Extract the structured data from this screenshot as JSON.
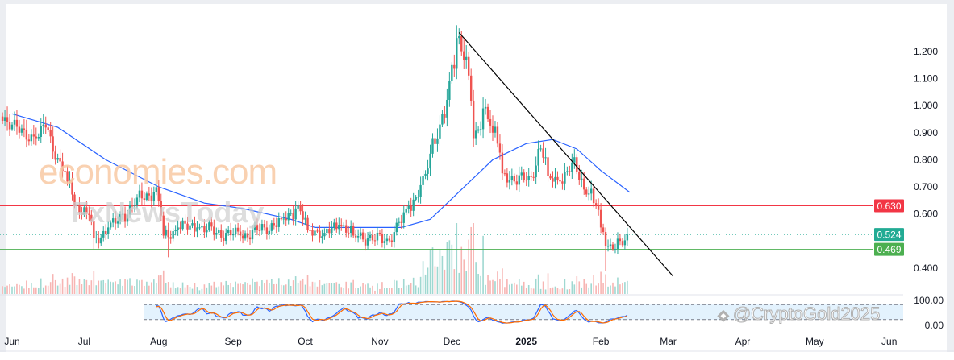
{
  "chart_data": {
    "type": "candlestick",
    "symbol_watermarks": [
      "economies.com",
      "FxNewsToday",
      "@CryptoGold2025"
    ],
    "price_axis": {
      "ticks": [
        "1.200",
        "1.100",
        "1.000",
        "0.900",
        "0.800",
        "0.700",
        "0.600",
        "0.400"
      ],
      "ylim": [
        0.37,
        1.3
      ]
    },
    "time_axis": {
      "ticks": [
        {
          "label": "Jun",
          "date": "2024-06-01"
        },
        {
          "label": "Jul",
          "date": "2024-07-01"
        },
        {
          "label": "Aug",
          "date": "2024-08-01"
        },
        {
          "label": "Sep",
          "date": "2024-09-01"
        },
        {
          "label": "Oct",
          "date": "2024-10-01"
        },
        {
          "label": "Nov",
          "date": "2024-11-01"
        },
        {
          "label": "Dec",
          "date": "2024-12-01"
        },
        {
          "label": "2025",
          "date": "2025-01-01"
        },
        {
          "label": "Feb",
          "date": "2025-02-01"
        },
        {
          "label": "Mar",
          "date": "2025-03-01"
        },
        {
          "label": "Apr",
          "date": "2025-04-01"
        },
        {
          "label": "May",
          "date": "2025-05-01"
        },
        {
          "label": "Jun",
          "date": "2025-06-01"
        }
      ]
    },
    "price_path": [
      [
        "2024-05-28",
        0.96
      ],
      [
        "2024-06-05",
        0.9
      ],
      [
        "2024-06-12",
        0.88
      ],
      [
        "2024-06-15",
        0.93
      ],
      [
        "2024-06-20",
        0.8
      ],
      [
        "2024-06-25",
        0.72
      ],
      [
        "2024-06-28",
        0.63
      ],
      [
        "2024-07-03",
        0.6
      ],
      [
        "2024-07-06",
        0.51
      ],
      [
        "2024-07-12",
        0.55
      ],
      [
        "2024-07-18",
        0.6
      ],
      [
        "2024-07-24",
        0.66
      ],
      [
        "2024-07-31",
        0.68
      ],
      [
        "2024-08-04",
        0.52
      ],
      [
        "2024-08-10",
        0.55
      ],
      [
        "2024-08-18",
        0.55
      ],
      [
        "2024-08-26",
        0.53
      ],
      [
        "2024-09-05",
        0.52
      ],
      [
        "2024-09-15",
        0.55
      ],
      [
        "2024-09-22",
        0.58
      ],
      [
        "2024-09-28",
        0.62
      ],
      [
        "2024-10-03",
        0.54
      ],
      [
        "2024-10-10",
        0.53
      ],
      [
        "2024-10-16",
        0.56
      ],
      [
        "2024-10-22",
        0.52
      ],
      [
        "2024-10-28",
        0.51
      ],
      [
        "2024-11-04",
        0.5
      ],
      [
        "2024-11-10",
        0.57
      ],
      [
        "2024-11-14",
        0.63
      ],
      [
        "2024-11-20",
        0.74
      ],
      [
        "2024-11-24",
        0.88
      ],
      [
        "2024-11-28",
        0.97
      ],
      [
        "2024-12-02",
        1.15
      ],
      [
        "2024-12-04",
        1.25
      ],
      [
        "2024-12-07",
        1.17
      ],
      [
        "2024-12-11",
        0.88
      ],
      [
        "2024-12-15",
        0.99
      ],
      [
        "2024-12-19",
        0.9
      ],
      [
        "2024-12-23",
        0.75
      ],
      [
        "2024-12-28",
        0.72
      ],
      [
        "2025-01-03",
        0.74
      ],
      [
        "2025-01-07",
        0.84
      ],
      [
        "2025-01-11",
        0.74
      ],
      [
        "2025-01-16",
        0.72
      ],
      [
        "2025-01-21",
        0.79
      ],
      [
        "2025-01-26",
        0.69
      ],
      [
        "2025-01-30",
        0.64
      ],
      [
        "2025-02-02",
        0.55
      ],
      [
        "2025-02-04",
        0.48
      ],
      [
        "2025-02-07",
        0.47
      ],
      [
        "2025-02-10",
        0.5
      ],
      [
        "2025-02-13",
        0.524
      ]
    ],
    "moving_average": [
      [
        "2024-06-01",
        0.97
      ],
      [
        "2024-06-20",
        0.92
      ],
      [
        "2024-07-10",
        0.8
      ],
      [
        "2024-08-01",
        0.7
      ],
      [
        "2024-08-20",
        0.64
      ],
      [
        "2024-09-05",
        0.62
      ],
      [
        "2024-09-25",
        0.58
      ],
      [
        "2024-10-05",
        0.55
      ],
      [
        "2024-10-25",
        0.55
      ],
      [
        "2024-11-10",
        0.55
      ],
      [
        "2024-11-22",
        0.58
      ],
      [
        "2024-12-05",
        0.69
      ],
      [
        "2024-12-18",
        0.8
      ],
      [
        "2025-01-01",
        0.86
      ],
      [
        "2025-01-12",
        0.875
      ],
      [
        "2025-01-22",
        0.84
      ],
      [
        "2025-02-01",
        0.76
      ],
      [
        "2025-02-13",
        0.68
      ]
    ],
    "trendline": {
      "from": [
        "2024-12-04",
        1.27
      ],
      "to": [
        "2025-03-03",
        0.37
      ],
      "color": "#000000"
    },
    "levels": [
      {
        "value": "0.630",
        "color": "#f23645",
        "style": "solid"
      },
      {
        "value": "0.524",
        "color": "#22ab94",
        "style": "dotted"
      },
      {
        "value": "0.469",
        "color": "#4caf50",
        "style": "solid"
      }
    ],
    "oscillator": {
      "type": "stochastic",
      "ticks": [
        "100.00",
        "0.00"
      ],
      "bands": [
        80,
        50,
        20
      ],
      "k_color": "#2962ff",
      "d_color": "#ff6d00",
      "start": "2024-07-31"
    },
    "colors": {
      "up": "#26a69a",
      "down": "#ef5350",
      "ma": "#2962ff",
      "band_fill": "#e3f2fd"
    }
  }
}
